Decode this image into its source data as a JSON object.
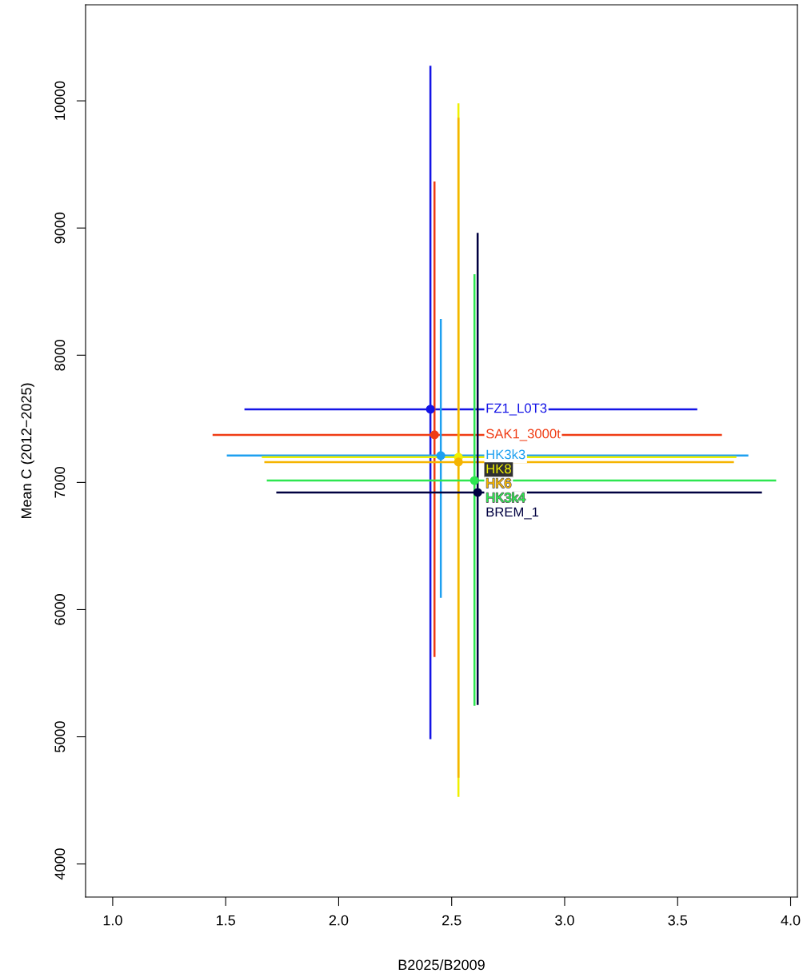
{
  "chart_data": {
    "type": "scatter",
    "xlabel": "B2025/B2009",
    "ylabel": "Mean C (2012−2025)",
    "xlim": [
      0.88,
      4.03
    ],
    "ylim": [
      3740,
      10755
    ],
    "xticks": [
      {
        "value": 1.0,
        "label": "1.0"
      },
      {
        "value": 1.5,
        "label": "1.5"
      },
      {
        "value": 2.0,
        "label": "2.0"
      },
      {
        "value": 2.5,
        "label": "2.5"
      },
      {
        "value": 3.0,
        "label": "3.0"
      },
      {
        "value": 3.5,
        "label": "3.5"
      },
      {
        "value": 4.0,
        "label": "4.0"
      }
    ],
    "yticks": [
      4000,
      5000,
      6000,
      7000,
      8000,
      9000,
      10000
    ],
    "grid": false,
    "legend": false,
    "marker": "circle",
    "series": [
      {
        "name": "FZ1_L0T3",
        "color": "#1414e6",
        "x": [
          2.406
        ],
        "values": [
          7575
        ],
        "errors": [
          [
            4981,
            10276
          ]
        ],
        "xerrors": [
          [
            1.583,
            3.587
          ]
        ]
      },
      {
        "name": "SAK1_3000t",
        "color": "#f03c14",
        "x": [
          2.424
        ],
        "values": [
          7374
        ],
        "errors": [
          [
            5627,
            9366
          ]
        ],
        "xerrors": [
          [
            1.442,
            3.696
          ]
        ]
      },
      {
        "name": "HK3k3",
        "color": "#1ea0f0",
        "x": [
          2.452
        ],
        "values": [
          7211
        ],
        "errors": [
          [
            6093,
            8285
          ]
        ],
        "xerrors": [
          [
            1.505,
            3.813
          ]
        ]
      },
      {
        "name": "HK8",
        "color": "#f0f000",
        "x": [
          2.53
        ],
        "values": [
          7198
        ],
        "errors": [
          [
            4528,
            9981
          ]
        ],
        "xerrors": [
          [
            1.66,
            3.76
          ]
        ]
      },
      {
        "name": "HK6",
        "color": "#f5b400",
        "x": [
          2.53
        ],
        "values": [
          7160
        ],
        "errors": [
          [
            4678,
            9867
          ]
        ],
        "xerrors": [
          [
            1.671,
            3.749
          ]
        ]
      },
      {
        "name": "HK3k4",
        "color": "#2ee650",
        "x": [
          2.601
        ],
        "values": [
          7015
        ],
        "errors": [
          [
            5244,
            8637
          ]
        ],
        "xerrors": [
          [
            1.682,
            3.936
          ]
        ]
      },
      {
        "name": "BREM_1",
        "color": "#000040",
        "x": [
          2.615
        ],
        "values": [
          6921
        ],
        "errors": [
          [
            5250,
            8962
          ]
        ],
        "xerrors": [
          [
            1.724,
            3.873
          ]
        ]
      }
    ]
  }
}
